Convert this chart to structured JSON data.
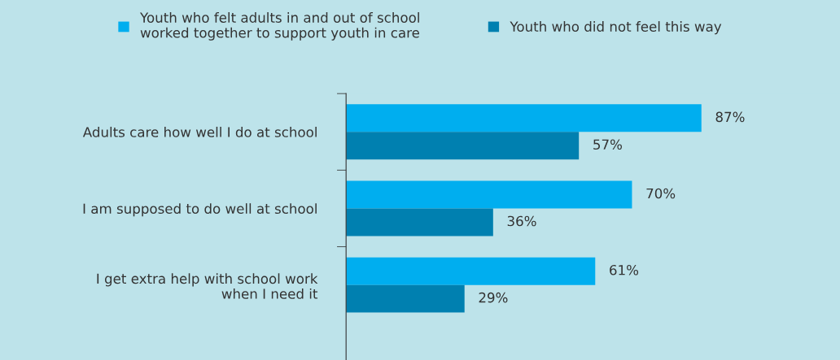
{
  "chart_data": {
    "type": "bar",
    "orientation": "horizontal",
    "categories": [
      "Adults care how well I do at school",
      "I am supposed to do well at school",
      "I get extra help with school work\nwhen I need it"
    ],
    "series": [
      {
        "name": "Youth who felt adults in and out of school\nworked together to support youth in care",
        "color": "#00aeef",
        "values": [
          87,
          70,
          61
        ],
        "value_labels": [
          "87%",
          "70%",
          "61%"
        ]
      },
      {
        "name": "Youth who did not feel this way",
        "color": "#0080b0",
        "values": [
          57,
          36,
          29
        ],
        "value_labels": [
          "57%",
          "36%",
          "29%"
        ]
      }
    ],
    "legend": "top",
    "grid": false
  }
}
